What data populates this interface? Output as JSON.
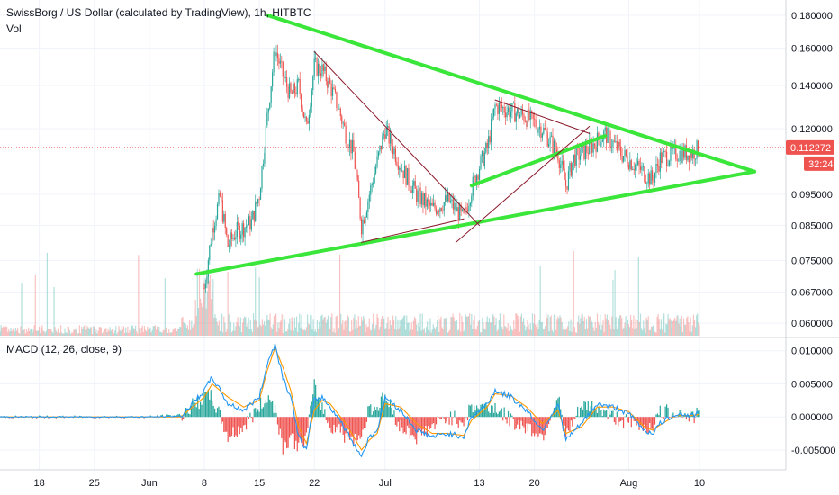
{
  "header": {
    "title": "SwissBorg / US Dollar (calculated by TradingView), 1h, HITBTC",
    "vol_label": "Vol",
    "macd_label": "MACD (12, 26, close, 9)"
  },
  "colors": {
    "up": "#26a69a",
    "down": "#ef5350",
    "trend_green": "#39e639",
    "trend_thin": "#8b1a2b",
    "macd_line": "#2196f3",
    "signal_line": "#ff9800",
    "price_badge": "#ef5350"
  },
  "chart_data": [
    {
      "type": "candlestick",
      "title": "SwissBorg / US Dollar (calculated by TradingView), 1h, HITBTC",
      "y_axis": {
        "scale": "log",
        "range": [
          0.057,
          0.19
        ],
        "ticks": [
          "0.180000",
          "0.160000",
          "0.140000",
          "0.120000",
          "0.112272",
          "0.095000",
          "0.085000",
          "0.075000",
          "0.067000",
          "0.060000"
        ]
      },
      "x_axis": {
        "range": [
          "2019-05-13",
          "2019-08-21"
        ],
        "ticks": [
          {
            "label": "18",
            "date": "2019-05-18"
          },
          {
            "label": "25",
            "date": "2019-05-25"
          },
          {
            "label": "Jun",
            "date": "2019-06-01"
          },
          {
            "label": "8",
            "date": "2019-06-08"
          },
          {
            "label": "15",
            "date": "2019-06-15"
          },
          {
            "label": "22",
            "date": "2019-06-22"
          },
          {
            "label": "Jul",
            "date": "2019-07-01"
          },
          {
            "label": "13",
            "date": "2019-07-13"
          },
          {
            "label": "20",
            "date": "2019-07-20"
          },
          {
            "label": "Aug",
            "date": "2019-08-01"
          },
          {
            "label": "10",
            "date": "2019-08-10"
          }
        ]
      },
      "price_path": [
        [
          "2019-06-08",
          0.068
        ],
        [
          "2019-06-09",
          0.084
        ],
        [
          "2019-06-10",
          0.094
        ],
        [
          "2019-06-11",
          0.079
        ],
        [
          "2019-06-12",
          0.083
        ],
        [
          "2019-06-14",
          0.086
        ],
        [
          "2019-06-15",
          0.095
        ],
        [
          "2019-06-16",
          0.125
        ],
        [
          "2019-06-17",
          0.16
        ],
        [
          "2019-06-18",
          0.145
        ],
        [
          "2019-06-19",
          0.135
        ],
        [
          "2019-06-20",
          0.14
        ],
        [
          "2019-06-21",
          0.12
        ],
        [
          "2019-06-22",
          0.15
        ],
        [
          "2019-06-23",
          0.148
        ],
        [
          "2019-06-24",
          0.14
        ],
        [
          "2019-06-25",
          0.13
        ],
        [
          "2019-06-26",
          0.118
        ],
        [
          "2019-06-27",
          0.11
        ],
        [
          "2019-06-28",
          0.085
        ],
        [
          "2019-06-29",
          0.095
        ],
        [
          "2019-07-01",
          0.12
        ],
        [
          "2019-07-03",
          0.105
        ],
        [
          "2019-07-05",
          0.095
        ],
        [
          "2019-07-07",
          0.09
        ],
        [
          "2019-07-09",
          0.093
        ],
        [
          "2019-07-11",
          0.087
        ],
        [
          "2019-07-12",
          0.097
        ],
        [
          "2019-07-13",
          0.105
        ],
        [
          "2019-07-14",
          0.112
        ],
        [
          "2019-07-15",
          0.13
        ],
        [
          "2019-07-17",
          0.128
        ],
        [
          "2019-07-19",
          0.125
        ],
        [
          "2019-07-21",
          0.12
        ],
        [
          "2019-07-23",
          0.11
        ],
        [
          "2019-07-24",
          0.098
        ],
        [
          "2019-07-25",
          0.108
        ],
        [
          "2019-07-27",
          0.112
        ],
        [
          "2019-07-29",
          0.118
        ],
        [
          "2019-07-31",
          0.11
        ],
        [
          "2019-08-02",
          0.105
        ],
        [
          "2019-08-04",
          0.1
        ],
        [
          "2019-08-05",
          0.108
        ],
        [
          "2019-08-07",
          0.11
        ],
        [
          "2019-08-09",
          0.11
        ],
        [
          "2019-08-10",
          0.112
        ]
      ],
      "last_price": "0.112272",
      "countdown": "32:24",
      "trendlines": [
        {
          "style": "thick",
          "from": [
            "2019-06-16",
            0.18
          ],
          "to": [
            "2019-08-17",
            0.103
          ]
        },
        {
          "style": "thick",
          "from": [
            "2019-06-07",
            0.0715
          ],
          "to": [
            "2019-08-17",
            0.103
          ]
        },
        {
          "style": "thick",
          "from": [
            "2019-07-12",
            0.098
          ],
          "to": [
            "2019-07-29",
            0.117
          ]
        },
        {
          "style": "thin",
          "from": [
            "2019-06-22",
            0.158
          ],
          "to": [
            "2019-07-13",
            0.085
          ]
        },
        {
          "style": "thin",
          "from": [
            "2019-06-28",
            0.08
          ],
          "to": [
            "2019-07-11",
            0.087
          ]
        },
        {
          "style": "thin",
          "from": [
            "2019-07-10",
            0.08
          ],
          "to": [
            "2019-07-27",
            0.121
          ]
        },
        {
          "style": "thin",
          "from": [
            "2019-07-15",
            0.133
          ],
          "to": [
            "2019-07-27",
            0.118
          ]
        }
      ]
    },
    {
      "type": "bar",
      "title": "Vol",
      "description_of_shape": "hourly volume bars, spike around June 8"
    },
    {
      "type": "line",
      "title": "MACD (12, 26, close, 9)",
      "y_axis": {
        "range": [
          -0.008,
          0.012
        ],
        "ticks": [
          "0.010000",
          "0.005000",
          "0.000000",
          "-0.005000"
        ]
      },
      "series": [
        {
          "name": "MACD",
          "x": [
            "2019-05-13",
            "2019-06-01",
            "2019-06-05",
            "2019-06-08",
            "2019-06-09",
            "2019-06-11",
            "2019-06-13",
            "2019-06-15",
            "2019-06-16",
            "2019-06-17",
            "2019-06-18",
            "2019-06-19",
            "2019-06-20",
            "2019-06-21",
            "2019-06-22",
            "2019-06-23",
            "2019-06-24",
            "2019-06-25",
            "2019-06-26",
            "2019-06-27",
            "2019-06-28",
            "2019-06-29",
            "2019-06-30",
            "2019-07-01",
            "2019-07-03",
            "2019-07-05",
            "2019-07-07",
            "2019-07-09",
            "2019-07-11",
            "2019-07-12",
            "2019-07-14",
            "2019-07-15",
            "2019-07-17",
            "2019-07-19",
            "2019-07-21",
            "2019-07-23",
            "2019-07-24",
            "2019-07-26",
            "2019-07-28",
            "2019-07-30",
            "2019-08-01",
            "2019-08-03",
            "2019-08-04",
            "2019-08-05",
            "2019-08-07",
            "2019-08-09",
            "2019-08-10"
          ],
          "values": [
            0,
            0,
            0.0001,
            0.004,
            0.006,
            0.002,
            0.001,
            0.003,
            0.008,
            0.011,
            0.006,
            0.003,
            -0.003,
            -0.005,
            0.0025,
            0.003,
            0.0015,
            0,
            -0.002,
            -0.004,
            -0.006,
            -0.003,
            -0.002,
            0.003,
            0.001,
            -0.002,
            -0.003,
            -0.0025,
            -0.003,
            0,
            0.002,
            0.004,
            0.003,
            0.001,
            -0.002,
            0.002,
            -0.0035,
            -0.001,
            0.002,
            0.0015,
            0.0005,
            -0.002,
            -0.0025,
            -0.001,
            0.0005,
            0.0002,
            0.0005
          ]
        },
        {
          "name": "Signal",
          "x": [
            "2019-05-13",
            "2019-06-01",
            "2019-06-05",
            "2019-06-08",
            "2019-06-09",
            "2019-06-11",
            "2019-06-13",
            "2019-06-15",
            "2019-06-16",
            "2019-06-17",
            "2019-06-18",
            "2019-06-19",
            "2019-06-20",
            "2019-06-21",
            "2019-06-22",
            "2019-06-23",
            "2019-06-24",
            "2019-06-25",
            "2019-06-26",
            "2019-06-27",
            "2019-06-28",
            "2019-06-29",
            "2019-06-30",
            "2019-07-01",
            "2019-07-03",
            "2019-07-05",
            "2019-07-07",
            "2019-07-09",
            "2019-07-11",
            "2019-07-12",
            "2019-07-14",
            "2019-07-15",
            "2019-07-17",
            "2019-07-19",
            "2019-07-21",
            "2019-07-23",
            "2019-07-24",
            "2019-07-26",
            "2019-07-28",
            "2019-07-30",
            "2019-08-01",
            "2019-08-03",
            "2019-08-04",
            "2019-08-05",
            "2019-08-07",
            "2019-08-09",
            "2019-08-10"
          ],
          "values": [
            0,
            0,
            0,
            0.003,
            0.005,
            0.003,
            0.0015,
            0.0025,
            0.007,
            0.0105,
            0.0075,
            0.004,
            -0.0015,
            -0.004,
            0.001,
            0.0025,
            0.002,
            0.0005,
            -0.001,
            -0.003,
            -0.005,
            -0.0035,
            -0.0025,
            0.002,
            0.0015,
            -0.001,
            -0.0025,
            -0.0025,
            -0.0028,
            -0.0005,
            0.0015,
            0.0035,
            0.0032,
            0.0015,
            -0.001,
            0.001,
            -0.0025,
            -0.0015,
            0.0015,
            0.0015,
            0.0008,
            -0.0015,
            -0.002,
            -0.0012,
            0.0002,
            0.0002,
            0.0004
          ]
        }
      ]
    }
  ]
}
